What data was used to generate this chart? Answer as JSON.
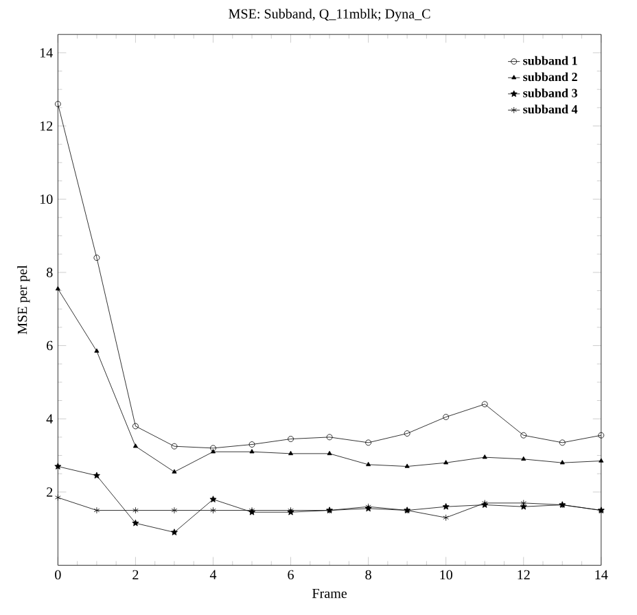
{
  "chart_data": {
    "type": "line",
    "title": "MSE: Subband, Q_11mblk; Dyna_C",
    "xlabel": "Frame",
    "ylabel": "MSE per pel",
    "x": [
      0,
      1,
      2,
      3,
      4,
      5,
      6,
      7,
      8,
      9,
      10,
      11,
      12,
      13,
      14
    ],
    "xlim": [
      0,
      14
    ],
    "xticks": [
      0,
      2,
      4,
      6,
      8,
      10,
      12,
      14
    ],
    "ylim": [
      0,
      14.5
    ],
    "yticks": [
      2,
      4,
      6,
      8,
      10,
      12,
      14
    ],
    "legend": "top right",
    "grid": false,
    "line_style": "solid",
    "series": [
      {
        "name": "subband 1",
        "color": "#000000",
        "marker": "circle",
        "values": [
          12.6,
          8.4,
          3.8,
          3.25,
          3.2,
          3.3,
          3.45,
          3.5,
          3.35,
          3.6,
          4.05,
          4.4,
          3.55,
          3.35,
          3.55
        ]
      },
      {
        "name": "subband 2",
        "color": "#000000",
        "marker": "triangle",
        "values": [
          7.55,
          5.85,
          3.25,
          2.55,
          3.1,
          3.1,
          3.05,
          3.05,
          2.75,
          2.7,
          2.8,
          2.95,
          2.9,
          2.8,
          2.85
        ]
      },
      {
        "name": "subband 3",
        "color": "#000000",
        "marker": "star",
        "values": [
          2.7,
          2.45,
          1.15,
          0.9,
          1.8,
          1.45,
          1.45,
          1.5,
          1.55,
          1.5,
          1.6,
          1.65,
          1.6,
          1.65,
          1.5
        ]
      },
      {
        "name": "subband 4",
        "color": "#000000",
        "marker": "cross",
        "values": [
          1.85,
          1.5,
          1.5,
          1.5,
          1.5,
          1.5,
          1.5,
          1.5,
          1.6,
          1.5,
          1.3,
          1.7,
          1.7,
          1.65,
          1.5
        ]
      }
    ]
  }
}
